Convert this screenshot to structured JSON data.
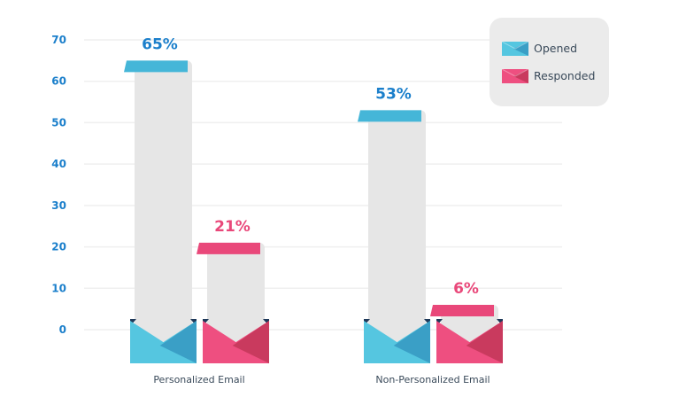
{
  "chart_data": {
    "type": "bar",
    "categories": [
      "Personalized Email",
      "Non-Personalized Email"
    ],
    "series": [
      {
        "name": "Opened",
        "values": [
          65,
          53
        ],
        "labels": [
          "65%",
          "53%"
        ],
        "color": "#45b6d8"
      },
      {
        "name": "Responded",
        "values": [
          21,
          6
        ],
        "labels": [
          "21%",
          "6%"
        ],
        "color": "#e9487a"
      }
    ],
    "ylim": [
      0,
      70
    ],
    "yticks": [
      "0",
      "10",
      "20",
      "30",
      "40",
      "50",
      "60",
      "70"
    ],
    "grid": true,
    "legend": "top-right",
    "label_colors": {
      "Opened": "#1b7fcb",
      "Responded": "#e9487a"
    }
  }
}
